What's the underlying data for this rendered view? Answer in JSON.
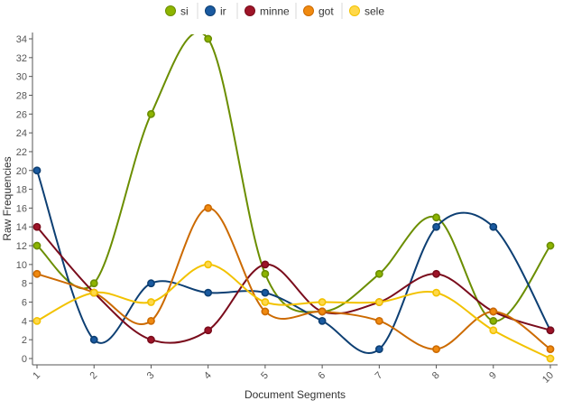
{
  "chart_data": {
    "type": "line",
    "smooth": true,
    "xlabel": "Document Segments",
    "ylabel": "Raw Frequencies",
    "x": [
      1,
      2,
      3,
      4,
      5,
      6,
      7,
      8,
      9,
      10
    ],
    "xlim": [
      1,
      10
    ],
    "ylim": [
      0,
      34
    ],
    "ytick_step": 2,
    "grid": false,
    "legend_position": "top-center",
    "series": [
      {
        "name": "si",
        "color": "#6b8e00",
        "marker_color": "#8db400",
        "values": [
          12,
          8,
          26,
          34,
          9,
          5,
          9,
          15,
          4,
          12
        ]
      },
      {
        "name": "ir",
        "color": "#0d3f73",
        "marker_color": "#1a5aa0",
        "values": [
          20,
          2,
          8,
          7,
          7,
          4,
          1,
          14,
          14,
          3
        ]
      },
      {
        "name": "minne",
        "color": "#7a0c1c",
        "marker_color": "#9e1428",
        "values": [
          14,
          7,
          2,
          3,
          10,
          5,
          6,
          9,
          5,
          3
        ]
      },
      {
        "name": "got",
        "color": "#cc6a00",
        "marker_color": "#f08a10",
        "values": [
          9,
          7,
          4,
          16,
          5,
          5,
          4,
          1,
          5,
          1
        ]
      },
      {
        "name": "sele",
        "color": "#f2c200",
        "marker_color": "#ffd84a",
        "values": [
          4,
          7,
          6,
          10,
          6,
          6,
          6,
          7,
          3,
          0
        ]
      }
    ]
  }
}
